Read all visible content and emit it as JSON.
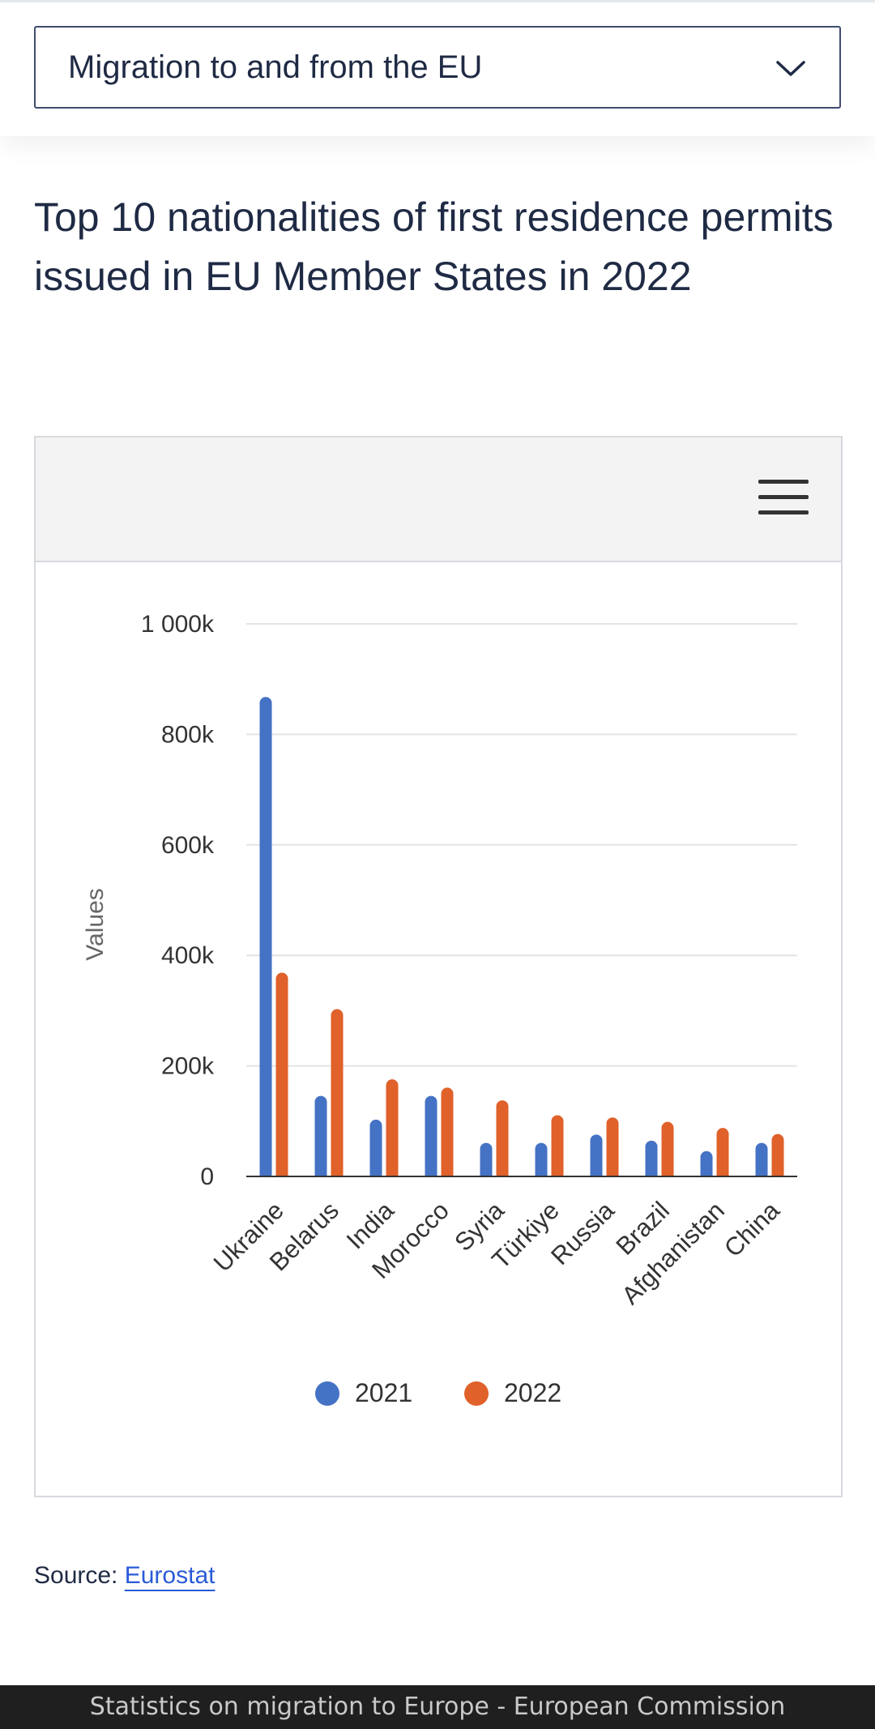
{
  "dropdown": {
    "selected": "Migration to and from the EU",
    "icon": "chevron-down-icon"
  },
  "chart_title": "Top 10 nationalities of first residence permits issued in EU Member States in 2022",
  "menu_icon": "hamburger-menu-icon",
  "source": {
    "label": "Source:",
    "link_text": "Eurostat"
  },
  "footer": {
    "text": "Statistics on migration to Europe - European Commission"
  },
  "colors": {
    "series_2021": "#4472c4",
    "series_2022": "#e0612a",
    "text": "#1f2a44",
    "link": "#2a5bd7"
  },
  "chart_data": {
    "type": "bar",
    "title": "Top 10 nationalities of first residence permits issued in EU Member States in 2022",
    "ylabel": "Values",
    "xlabel": "",
    "ylim": [
      0,
      1000000
    ],
    "yticks": [
      0,
      200000,
      400000,
      600000,
      800000,
      1000000
    ],
    "ytick_labels": [
      "0",
      "200k",
      "400k",
      "600k",
      "800k",
      "1 000k"
    ],
    "categories": [
      "Ukraine",
      "Belarus",
      "India",
      "Morocco",
      "Syria",
      "Türkiye",
      "Russia",
      "Brazil",
      "Afghanistan",
      "China"
    ],
    "series": [
      {
        "name": "2021",
        "color": "#4472c4",
        "values": [
          867000,
          145000,
          102000,
          145000,
          60000,
          60000,
          75000,
          64000,
          45000,
          60000
        ]
      },
      {
        "name": "2022",
        "color": "#e0612a",
        "values": [
          368000,
          302000,
          175000,
          160000,
          137000,
          110000,
          106000,
          98000,
          87000,
          76000
        ]
      }
    ],
    "legend": "bottom-center",
    "grid": true
  }
}
